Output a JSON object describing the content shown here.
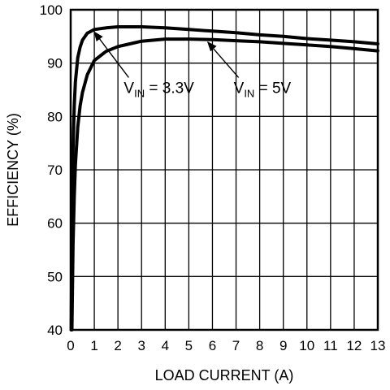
{
  "chart_data": {
    "type": "line",
    "title": "",
    "xlabel": "LOAD CURRENT (A)",
    "ylabel": "EFFICIENCY (%)",
    "xlim": [
      0,
      13
    ],
    "ylim": [
      40,
      100
    ],
    "x_ticks": [
      0,
      1,
      2,
      3,
      4,
      5,
      6,
      7,
      8,
      9,
      10,
      11,
      12,
      13
    ],
    "y_ticks": [
      40,
      50,
      60,
      70,
      80,
      90,
      100
    ],
    "grid": true,
    "series": [
      {
        "name": "VIN = 3.3V",
        "x": [
          0.02,
          0.05,
          0.1,
          0.15,
          0.2,
          0.3,
          0.4,
          0.5,
          0.7,
          1.0,
          1.5,
          2.0,
          2.5,
          3.0,
          4.0,
          5.0,
          6.0,
          7.0,
          8.0,
          9.0,
          10.0,
          11.0,
          12.0,
          13.0
        ],
        "y": [
          40,
          58,
          74,
          82,
          86.5,
          91,
          93,
          94.3,
          95.6,
          96.3,
          96.6,
          96.8,
          96.8,
          96.8,
          96.6,
          96.3,
          96.0,
          95.7,
          95.3,
          95.0,
          94.6,
          94.3,
          94.0,
          93.6
        ]
      },
      {
        "name": "VIN = 5V",
        "x": [
          0.05,
          0.1,
          0.15,
          0.2,
          0.3,
          0.4,
          0.5,
          0.7,
          1.0,
          1.5,
          2.0,
          2.5,
          3.0,
          4.0,
          5.0,
          6.0,
          7.0,
          8.0,
          9.0,
          10.0,
          11.0,
          12.0,
          13.0
        ],
        "y": [
          40,
          56,
          65,
          71,
          78,
          82,
          84.5,
          87.8,
          90.5,
          92.2,
          93.1,
          93.6,
          94.1,
          94.5,
          94.5,
          94.4,
          94.2,
          94.0,
          93.7,
          93.4,
          93.1,
          92.7,
          92.3
        ]
      }
    ],
    "annotations": [
      {
        "prefix": "V",
        "sub": "IN",
        "suffix": " = 3.3V",
        "text_x": 2.25,
        "text_y": 84.4,
        "arrow_to_x": 1.0,
        "arrow_to_y": 96.3
      },
      {
        "prefix": "V",
        "sub": "IN",
        "suffix": " = 5V",
        "text_x": 6.9,
        "text_y": 84.4,
        "arrow_to_x": 5.8,
        "arrow_to_y": 94.4
      }
    ]
  }
}
